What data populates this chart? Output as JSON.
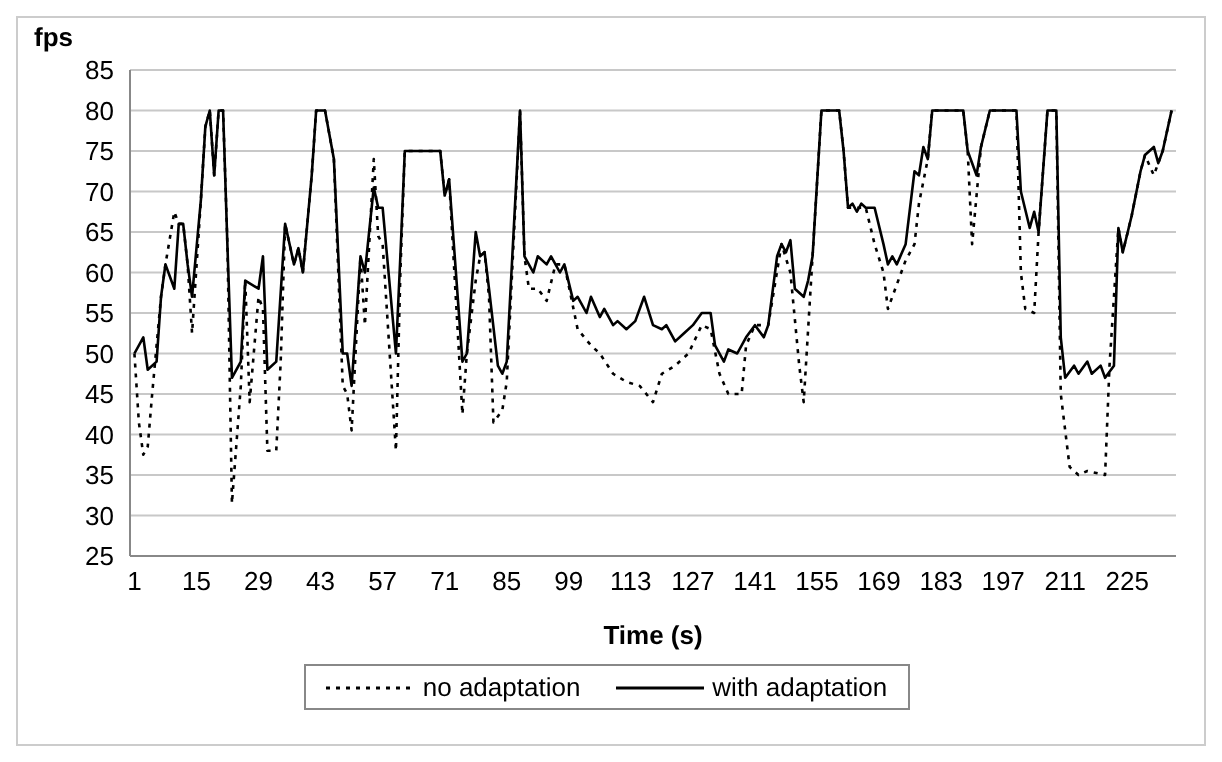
{
  "chart_data": {
    "type": "line",
    "xlabel": "Time (s)",
    "ylabel": "fps",
    "xlim": [
      0,
      236
    ],
    "xticks": [
      1,
      15,
      29,
      43,
      57,
      71,
      85,
      99,
      113,
      127,
      141,
      155,
      169,
      183,
      197,
      211,
      225
    ],
    "ylim": [
      25,
      85
    ],
    "yticks": [
      25,
      30,
      35,
      40,
      45,
      50,
      55,
      60,
      65,
      70,
      75,
      80,
      85
    ],
    "grid": "y",
    "legend": "bottom",
    "series": [
      {
        "name": "no adaptation",
        "color": "#000000",
        "line_style": "dotted",
        "x": [
          1,
          2,
          3,
          4,
          5,
          7,
          8,
          10,
          11,
          12,
          13,
          14,
          16,
          17,
          18,
          19,
          20,
          21,
          22,
          23,
          25,
          26,
          27,
          29,
          30,
          31,
          33,
          34,
          35,
          37,
          38,
          39,
          41,
          42,
          44,
          46,
          48,
          49,
          50,
          52,
          53,
          55,
          56,
          57,
          60,
          61,
          62,
          70,
          71,
          72,
          75,
          76,
          78,
          79,
          80,
          81,
          82,
          84,
          85,
          88,
          89,
          90,
          92,
          94,
          96,
          98,
          101,
          104,
          106,
          109,
          112,
          115,
          118,
          120,
          123,
          126,
          129,
          131,
          133,
          135,
          138,
          139,
          141,
          144,
          147,
          149,
          151,
          152,
          153,
          154,
          156,
          160,
          161,
          162,
          166,
          168,
          170,
          171,
          172,
          175,
          177,
          178,
          180,
          181,
          188,
          189,
          190,
          192,
          194,
          200,
          201,
          202,
          204,
          205,
          207,
          209,
          210,
          212,
          214,
          216,
          220,
          221,
          223,
          224,
          226,
          228,
          229,
          231,
          232,
          233,
          235
        ],
        "values": [
          50,
          41.5,
          37.5,
          38.5,
          45,
          57,
          61,
          67.5,
          66,
          66,
          61,
          52.5,
          69,
          78,
          80,
          72,
          80,
          80,
          63,
          31.5,
          46,
          59,
          44,
          57,
          55.5,
          38,
          38,
          49,
          66,
          61,
          63,
          60,
          72,
          80,
          80,
          74,
          46,
          45,
          40.5,
          62,
          53.5,
          74,
          64.5,
          63.5,
          38,
          60,
          75,
          75,
          69.5,
          71.5,
          42.5,
          50,
          59,
          62,
          62.5,
          57,
          41.5,
          43,
          46.5,
          80,
          62,
          58,
          58,
          56.5,
          61,
          61,
          53,
          51,
          50,
          47.5,
          46.5,
          46,
          44,
          47.5,
          48.5,
          50,
          53.5,
          53,
          47.5,
          45,
          45,
          51,
          53.5,
          53.5,
          63.5,
          60,
          48.5,
          44,
          53,
          62,
          80,
          80,
          75,
          68,
          68,
          63.5,
          60,
          55.5,
          57,
          61.5,
          63.5,
          68.5,
          74,
          80,
          80,
          75,
          63.5,
          75.5,
          80,
          80,
          60,
          55.5,
          55,
          65,
          80,
          80,
          45,
          36,
          35,
          35.5,
          35,
          48.5,
          65.5,
          62.5,
          67,
          72.5,
          74.5,
          72,
          73.5,
          75,
          80
        ]
      },
      {
        "name": "with adaptation",
        "color": "#000000",
        "line_style": "solid",
        "x": [
          1,
          3,
          4,
          6,
          7,
          8,
          10,
          11,
          12,
          13,
          14,
          16,
          17,
          18,
          19,
          20,
          21,
          22,
          23,
          25,
          26,
          29,
          30,
          31,
          33,
          35,
          37,
          38,
          39,
          41,
          42,
          44,
          46,
          48,
          49,
          50,
          52,
          53,
          55,
          56,
          57,
          60,
          61,
          62,
          70,
          71,
          72,
          75,
          76,
          78,
          79,
          80,
          81,
          83,
          84,
          85,
          88,
          89,
          91,
          92,
          94,
          95,
          97,
          98,
          100,
          101,
          103,
          104,
          106,
          107,
          109,
          110,
          112,
          114,
          116,
          118,
          120,
          121,
          123,
          125,
          127,
          129,
          131,
          132,
          134,
          135,
          137,
          139,
          141,
          143,
          144,
          146,
          147,
          148,
          149,
          150,
          152,
          153,
          154,
          156,
          160,
          161,
          162,
          163,
          164,
          165,
          166,
          168,
          170,
          171,
          172,
          173,
          175,
          177,
          178,
          179,
          180,
          181,
          188,
          189,
          191,
          192,
          194,
          200,
          201,
          203,
          204,
          205,
          207,
          209,
          210,
          211,
          213,
          214,
          216,
          217,
          219,
          220,
          222,
          223,
          224,
          226,
          228,
          229,
          231,
          232,
          233,
          235
        ],
        "values": [
          50,
          52,
          48,
          49,
          57,
          61,
          58,
          66,
          66,
          61,
          57,
          69,
          78,
          80,
          72,
          80,
          80,
          63,
          47,
          49,
          59,
          58,
          62,
          48,
          49,
          66,
          61,
          63,
          60,
          72,
          80,
          80,
          74,
          50,
          50,
          46,
          62,
          60,
          70.5,
          68,
          68,
          50,
          62,
          75,
          75,
          69.5,
          71.5,
          49,
          50,
          65,
          62,
          62.5,
          58,
          48.5,
          47.5,
          49,
          80,
          62,
          60,
          62,
          61,
          62,
          60,
          61,
          56.5,
          57,
          55,
          57,
          54.5,
          55.5,
          53.5,
          54,
          53,
          54,
          57,
          53.5,
          53,
          53.5,
          51.5,
          52.5,
          53.5,
          55,
          55,
          51,
          49,
          50.5,
          50,
          52,
          53.5,
          52,
          53.5,
          62,
          63.5,
          62.5,
          64,
          58,
          57,
          59,
          62,
          80,
          80,
          75,
          68,
          68.5,
          67.5,
          68.5,
          68,
          68,
          63.5,
          61,
          62,
          61,
          63.5,
          72.5,
          72,
          75.5,
          74,
          80,
          80,
          75,
          72,
          75.5,
          80,
          80,
          70,
          65.5,
          67.5,
          65,
          80,
          80,
          52,
          47,
          48.5,
          47.5,
          49,
          47.5,
          48.5,
          47,
          48.5,
          65.5,
          62.5,
          67,
          72.5,
          74.5,
          75.5,
          73.5,
          75,
          80
        ]
      }
    ]
  }
}
